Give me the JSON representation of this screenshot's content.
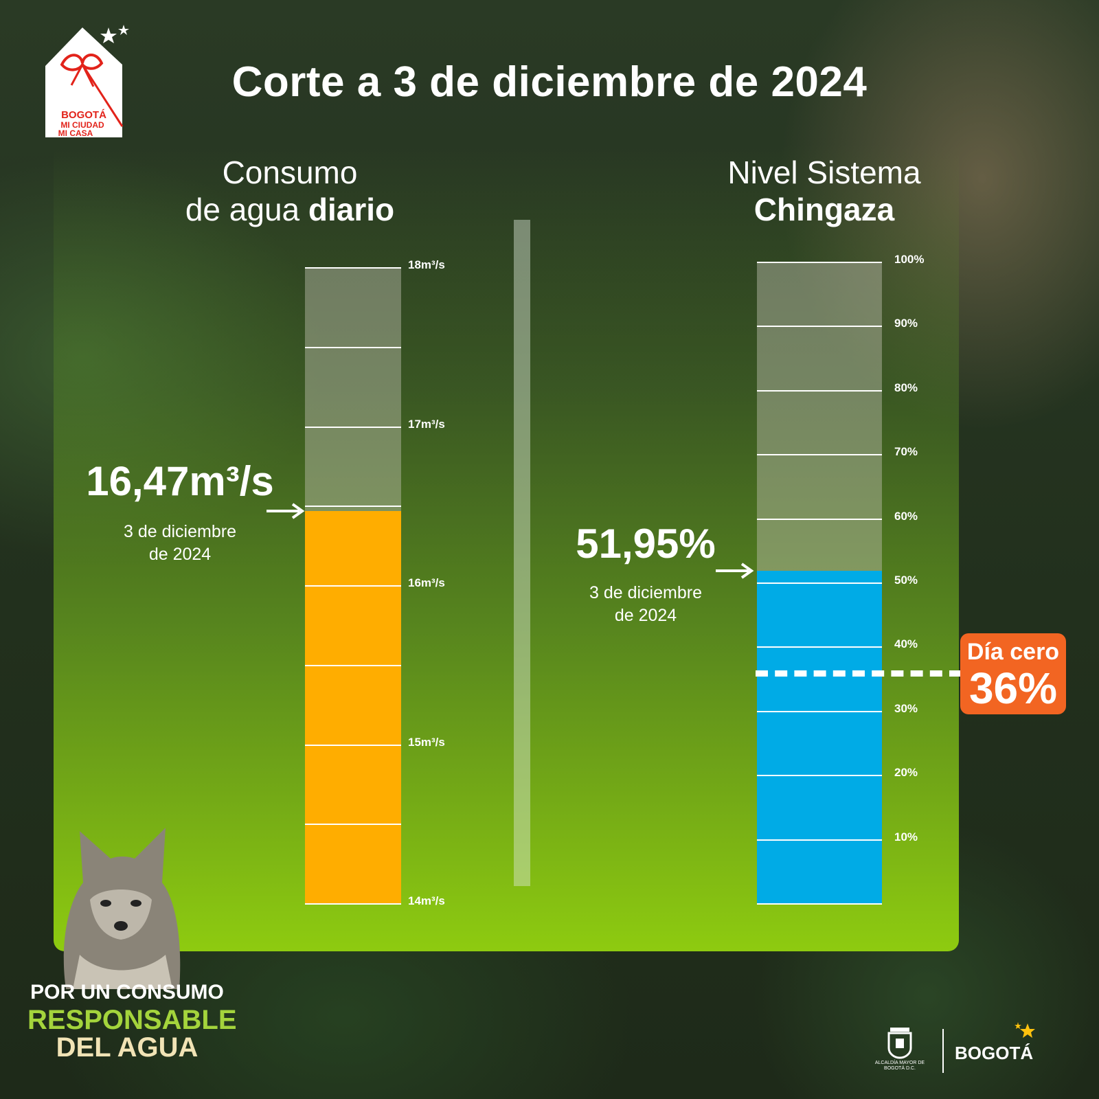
{
  "title": "Corte a 3 de diciembre de 2024",
  "brand": {
    "logo_line1": "BOGOTÁ",
    "logo_line2": "MI CIUDAD",
    "logo_line3": "MI CASA",
    "footer_crest": "ALCALDÍA MAYOR DE BOGOTÁ D.C.",
    "footer_wordmark": "BOGOTÁ"
  },
  "slogan": {
    "line1": "POR UN CONSUMO",
    "line2": "RESPONSABLE",
    "line3": "DEL AGUA"
  },
  "colors": {
    "consumption_fill": "#ffad00",
    "level_fill": "#00abe6",
    "badge": "#f26522",
    "panel_bottom": "#8ecb10"
  },
  "chart_data": [
    {
      "type": "bar",
      "title_regular": "Consumo",
      "title_line2_regular": "de agua",
      "title_line2_bold": "diario",
      "value": 16.47,
      "value_label": "16,47m³/s",
      "date_label_line1": "3 de diciembre",
      "date_label_line2": "de 2024",
      "ylim": [
        14,
        18
      ],
      "ticks": [
        {
          "value": 18,
          "label": "18m³/s"
        },
        {
          "value": 17,
          "label": "17m³/s"
        },
        {
          "value": 16,
          "label": "16m³/s"
        },
        {
          "value": 15,
          "label": "15m³/s"
        },
        {
          "value": 14,
          "label": "14m³/s"
        }
      ],
      "gridlines": [
        14,
        14.5,
        15,
        15.5,
        16,
        16.5,
        17,
        17.5,
        18
      ]
    },
    {
      "type": "bar",
      "title_regular": "Nivel Sistema",
      "title_bold": "Chingaza",
      "value": 51.95,
      "value_label": "51,95%",
      "date_label_line1": "3 de diciembre",
      "date_label_line2": "de 2024",
      "ylim": [
        0,
        100
      ],
      "ticks": [
        {
          "value": 100,
          "label": "100%"
        },
        {
          "value": 90,
          "label": "90%"
        },
        {
          "value": 80,
          "label": "80%"
        },
        {
          "value": 70,
          "label": "70%"
        },
        {
          "value": 60,
          "label": "60%"
        },
        {
          "value": 50,
          "label": "50%"
        },
        {
          "value": 40,
          "label": "40%"
        },
        {
          "value": 30,
          "label": "30%"
        },
        {
          "value": 20,
          "label": "20%"
        },
        {
          "value": 10,
          "label": "10%"
        }
      ],
      "gridlines": [
        0,
        10,
        20,
        30,
        40,
        50,
        60,
        70,
        80,
        90,
        100
      ],
      "threshold": {
        "value": 36,
        "label": "Día cero",
        "value_label": "36%"
      }
    }
  ]
}
